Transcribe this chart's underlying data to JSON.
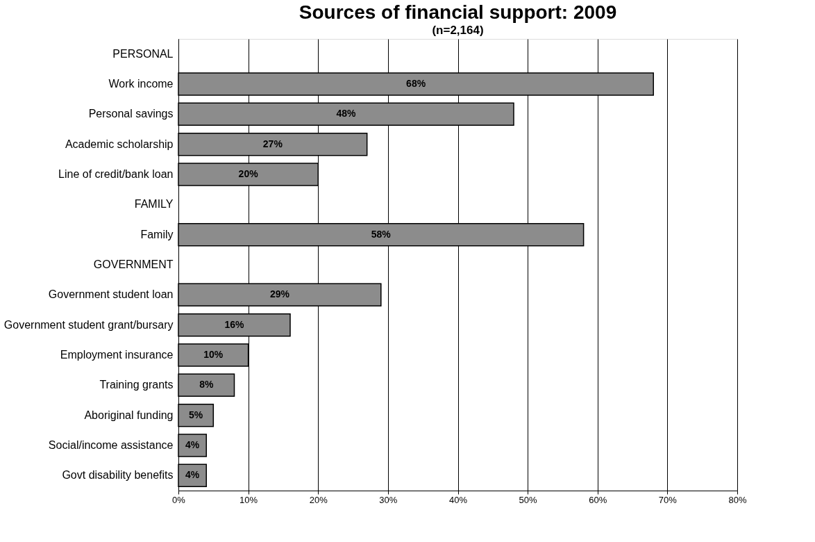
{
  "chart_data": {
    "type": "bar",
    "orientation": "horizontal",
    "title": "Sources of financial support: 2009",
    "subtitle": "(n=2,164)",
    "categories": [
      "PERSONAL",
      "Work income",
      "Personal savings",
      "Academic scholarship",
      "Line of credit/bank loan",
      "FAMILY",
      "Family",
      "GOVERNMENT",
      "Government student loan",
      "Government student grant/bursary",
      "Employment insurance",
      "Training grants",
      "Aboriginal funding",
      "Social/income assistance",
      "Govt disability benefits"
    ],
    "values": [
      null,
      68,
      48,
      27,
      20,
      null,
      58,
      null,
      29,
      16,
      10,
      8,
      5,
      4,
      4
    ],
    "value_labels": [
      null,
      "68%",
      "48%",
      "27%",
      "20%",
      null,
      "58%",
      null,
      "29%",
      "16%",
      "10%",
      "8%",
      "5%",
      "4%",
      "4%"
    ],
    "color": "#8c8c8c",
    "xlim": [
      0,
      80
    ],
    "xticks": [
      {
        "value": 0,
        "label": "0%"
      },
      {
        "value": 10,
        "label": "10%"
      },
      {
        "value": 20,
        "label": "20%"
      },
      {
        "value": 30,
        "label": "30%"
      },
      {
        "value": 40,
        "label": "40%"
      },
      {
        "value": 50,
        "label": "50%"
      },
      {
        "value": 60,
        "label": "60%"
      },
      {
        "value": 70,
        "label": "70%"
      },
      {
        "value": 80,
        "label": "80%"
      }
    ],
    "grid": "x"
  }
}
